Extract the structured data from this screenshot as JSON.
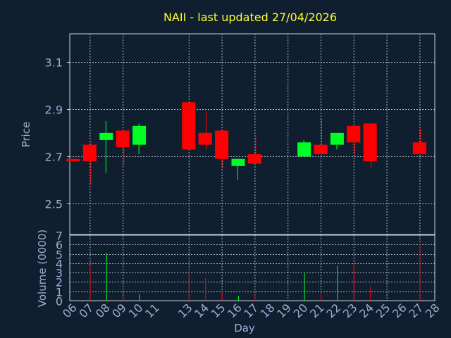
{
  "chart_data": {
    "type": "candlestick",
    "title": "NAII - last updated 27/04/2026",
    "xlabel": "Day",
    "price_ylabel": "Price",
    "volume_ylabel": "Volume (0000)",
    "x_tick_labels": [
      "06",
      "07",
      "08",
      "09",
      "10",
      "11",
      "13",
      "14",
      "15",
      "16",
      "17",
      "18",
      "19",
      "20",
      "21",
      "22",
      "23",
      "24",
      "25",
      "26",
      "27",
      "28"
    ],
    "price_ylim": [
      2.37,
      3.22
    ],
    "price_yticks": [
      "2.5",
      "2.7",
      "2.9",
      "3.1"
    ],
    "volume_ylim": [
      0,
      7
    ],
    "volume_yticks": [
      "0",
      "1",
      "2",
      "3",
      "4",
      "5",
      "6",
      "7"
    ],
    "grid": true,
    "colors": {
      "up": "#00ff22",
      "down": "#ff0000",
      "background": "#0f1f30",
      "title": "#ffff33",
      "axis_text": "#9aaed0"
    },
    "candles": [
      {
        "day": 6,
        "open": 2.69,
        "close": 2.68,
        "high": 2.69,
        "low": 2.68,
        "volume": 0.1
      },
      {
        "day": 7,
        "open": 2.75,
        "close": 2.68,
        "high": 2.76,
        "low": 2.58,
        "volume": 3.8
      },
      {
        "day": 8,
        "open": 2.77,
        "close": 2.8,
        "high": 2.85,
        "low": 2.63,
        "volume": 5.1
      },
      {
        "day": 9,
        "open": 2.81,
        "close": 2.74,
        "high": 2.81,
        "low": 2.67,
        "volume": 0.5
      },
      {
        "day": 10,
        "open": 2.75,
        "close": 2.83,
        "high": 2.84,
        "low": 2.71,
        "volume": 0.7
      },
      {
        "day": 13,
        "open": 2.93,
        "close": 2.73,
        "high": 2.93,
        "low": 2.73,
        "volume": 3.4
      },
      {
        "day": 14,
        "open": 2.8,
        "close": 2.75,
        "high": 2.89,
        "low": 2.73,
        "volume": 2.4
      },
      {
        "day": 15,
        "open": 2.81,
        "close": 2.69,
        "high": 2.81,
        "low": 2.65,
        "volume": 1.0
      },
      {
        "day": 16,
        "open": 2.66,
        "close": 2.69,
        "high": 2.69,
        "low": 2.6,
        "volume": 0.5
      },
      {
        "day": 17,
        "open": 2.71,
        "close": 2.67,
        "high": 2.78,
        "low": 2.67,
        "volume": 0.6
      },
      {
        "day": 20,
        "open": 2.7,
        "close": 2.76,
        "high": 2.77,
        "low": 2.7,
        "volume": 3.0
      },
      {
        "day": 21,
        "open": 2.75,
        "close": 2.71,
        "high": 2.86,
        "low": 2.71,
        "volume": 0.7
      },
      {
        "day": 22,
        "open": 2.75,
        "close": 2.8,
        "high": 2.8,
        "low": 2.73,
        "volume": 3.7
      },
      {
        "day": 23,
        "open": 2.83,
        "close": 2.76,
        "high": 2.83,
        "low": 2.71,
        "volume": 4.0
      },
      {
        "day": 24,
        "open": 2.84,
        "close": 2.68,
        "high": 2.84,
        "low": 2.65,
        "volume": 1.5
      },
      {
        "day": 27,
        "open": 2.76,
        "close": 2.71,
        "high": 2.82,
        "low": 2.71,
        "volume": 6.1
      }
    ]
  }
}
